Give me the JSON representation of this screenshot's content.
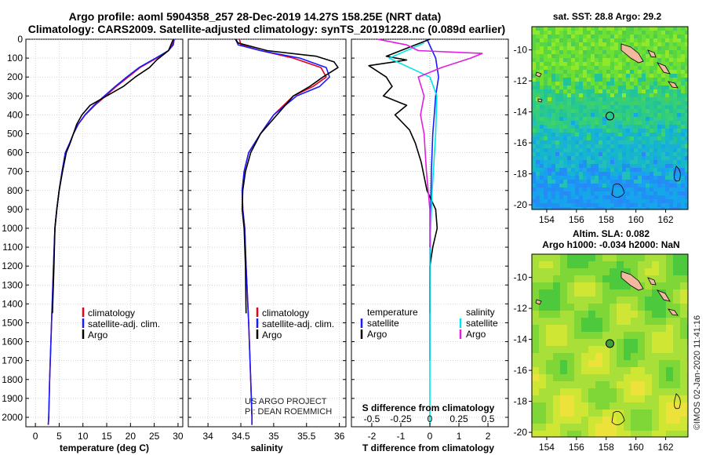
{
  "header": {
    "title_line1": "Argo profile: aoml 5904358_257 28-Dec-2019 14.27S 158.25E (NRT data)",
    "title_line2": "Climatology: CARS2009. Satellite-adjusted climatology: synTS_20191228.nc (0.089d earlier)"
  },
  "colors": {
    "climatology": "#e8001c",
    "satellite": "#1a1aff",
    "argo": "#000000",
    "sal_sat": "#00e5e5",
    "sal_argo": "#e01ee0"
  },
  "depth_axis": {
    "ticks": [
      0,
      100,
      200,
      300,
      400,
      500,
      600,
      700,
      800,
      900,
      1000,
      1100,
      1200,
      1300,
      1400,
      1500,
      1600,
      1700,
      1800,
      1900,
      2000
    ],
    "ylim": [
      0,
      2050
    ]
  },
  "chart_data": [
    {
      "type": "line",
      "name": "temperature",
      "xlabel": "temperature (deg C)",
      "xlim": [
        -2,
        31
      ],
      "xticks": [
        0,
        5,
        10,
        15,
        20,
        25,
        30
      ],
      "legend": [
        "climatology",
        "satellite-adj. clim.",
        "Argo"
      ],
      "series": [
        {
          "name": "climatology",
          "color": "#e8001c",
          "points": [
            [
              29.0,
              0
            ],
            [
              28.8,
              30
            ],
            [
              28.0,
              60
            ],
            [
              25.5,
              100
            ],
            [
              22.0,
              150
            ],
            [
              19.5,
              200
            ],
            [
              17.0,
              250
            ],
            [
              14.8,
              300
            ],
            [
              12.5,
              350
            ],
            [
              10.5,
              400
            ],
            [
              9.0,
              450
            ],
            [
              8.0,
              500
            ],
            [
              7.2,
              550
            ],
            [
              6.3,
              600
            ],
            [
              5.6,
              700
            ],
            [
              5.0,
              800
            ],
            [
              4.5,
              900
            ],
            [
              4.1,
              1000
            ],
            [
              3.8,
              1200
            ],
            [
              3.4,
              1500
            ],
            [
              3.0,
              1800
            ],
            [
              2.8,
              2000
            ],
            [
              2.7,
              2040
            ]
          ]
        },
        {
          "name": "satellite-adj. clim.",
          "color": "#1a1aff",
          "points": [
            [
              29.2,
              0
            ],
            [
              29.0,
              30
            ],
            [
              28.0,
              60
            ],
            [
              25.3,
              100
            ],
            [
              21.8,
              150
            ],
            [
              19.2,
              200
            ],
            [
              16.8,
              250
            ],
            [
              14.5,
              300
            ],
            [
              12.3,
              350
            ],
            [
              10.4,
              400
            ],
            [
              9.0,
              450
            ],
            [
              8.0,
              500
            ],
            [
              7.2,
              550
            ],
            [
              6.3,
              600
            ],
            [
              5.6,
              700
            ],
            [
              5.0,
              800
            ],
            [
              4.5,
              900
            ],
            [
              4.1,
              1000
            ],
            [
              3.8,
              1200
            ],
            [
              3.4,
              1500
            ],
            [
              3.0,
              1800
            ],
            [
              2.8,
              2000
            ],
            [
              2.7,
              2040
            ]
          ]
        },
        {
          "name": "Argo",
          "color": "#000000",
          "points": [
            [
              29.0,
              0
            ],
            [
              28.0,
              60
            ],
            [
              25.5,
              110
            ],
            [
              24.0,
              150
            ],
            [
              21.0,
              200
            ],
            [
              18.5,
              250
            ],
            [
              15.0,
              300
            ],
            [
              11.5,
              350
            ],
            [
              9.8,
              400
            ],
            [
              8.7,
              450
            ],
            [
              8.0,
              500
            ],
            [
              7.3,
              550
            ],
            [
              6.5,
              600
            ],
            [
              5.7,
              700
            ],
            [
              5.0,
              800
            ],
            [
              4.5,
              900
            ],
            [
              4.1,
              1000
            ],
            [
              3.9,
              1200
            ],
            [
              3.6,
              1450
            ]
          ]
        }
      ]
    },
    {
      "type": "line",
      "name": "salinity",
      "xlabel": "salinity",
      "xlim": [
        33.7,
        36.1
      ],
      "xticks": [
        34,
        34.5,
        35,
        35.5,
        36
      ],
      "xtick_labels": [
        "34",
        "34.5",
        "35",
        "35.5",
        "36"
      ],
      "legend": [
        "climatology",
        "satellite-adj. clim.",
        "Argo"
      ],
      "credit": [
        "US ARGO PROJECT",
        "PI: DEAN ROEMMICH"
      ],
      "series": [
        {
          "name": "climatology",
          "color": "#e8001c",
          "points": [
            [
              34.48,
              0
            ],
            [
              34.5,
              30
            ],
            [
              34.8,
              60
            ],
            [
              35.3,
              100
            ],
            [
              35.72,
              150
            ],
            [
              35.8,
              200
            ],
            [
              35.6,
              250
            ],
            [
              35.3,
              300
            ],
            [
              35.0,
              400
            ],
            [
              34.8,
              500
            ],
            [
              34.62,
              600
            ],
            [
              34.55,
              700
            ],
            [
              34.52,
              800
            ],
            [
              34.53,
              900
            ],
            [
              34.56,
              1000
            ],
            [
              34.58,
              1200
            ],
            [
              34.62,
              1500
            ],
            [
              34.65,
              1800
            ],
            [
              34.67,
              2000
            ],
            [
              34.67,
              2040
            ]
          ]
        },
        {
          "name": "satellite-adj. clim.",
          "color": "#1a1aff",
          "points": [
            [
              34.42,
              0
            ],
            [
              34.46,
              30
            ],
            [
              34.8,
              60
            ],
            [
              35.4,
              100
            ],
            [
              35.8,
              150
            ],
            [
              35.85,
              200
            ],
            [
              35.7,
              250
            ],
            [
              35.35,
              300
            ],
            [
              35.0,
              400
            ],
            [
              34.8,
              500
            ],
            [
              34.62,
              600
            ],
            [
              34.55,
              700
            ],
            [
              34.52,
              800
            ],
            [
              34.53,
              900
            ],
            [
              34.56,
              1000
            ],
            [
              34.58,
              1200
            ],
            [
              34.62,
              1500
            ],
            [
              34.65,
              1800
            ],
            [
              34.67,
              2000
            ],
            [
              34.67,
              2040
            ]
          ]
        },
        {
          "name": "Argo",
          "color": "#000000",
          "points": [
            [
              34.42,
              0
            ],
            [
              34.46,
              20
            ],
            [
              34.9,
              60
            ],
            [
              35.65,
              90
            ],
            [
              35.92,
              120
            ],
            [
              35.98,
              150
            ],
            [
              35.75,
              200
            ],
            [
              35.55,
              250
            ],
            [
              35.3,
              300
            ],
            [
              35.05,
              400
            ],
            [
              34.8,
              500
            ],
            [
              34.65,
              600
            ],
            [
              34.57,
              700
            ],
            [
              34.53,
              800
            ],
            [
              34.52,
              900
            ],
            [
              34.55,
              1000
            ],
            [
              34.57,
              1200
            ],
            [
              34.58,
              1450
            ]
          ]
        }
      ]
    },
    {
      "type": "line",
      "name": "difference",
      "xlabel": "T difference from climatology",
      "xlim": [
        -2.7,
        2.7
      ],
      "xticks": [
        -2,
        -1,
        0,
        1,
        2
      ],
      "top_axis_label": "S difference from climatology",
      "top_ticks": [
        -0.5,
        -0.25,
        0,
        0.25,
        0.5
      ],
      "top_tick_labels": [
        "-0.5",
        "-0.25",
        "0",
        "0.25",
        "0.5"
      ],
      "legend_temperature": {
        "title": "temperature",
        "items": [
          "satellite",
          "Argo"
        ]
      },
      "legend_salinity": {
        "title": "salinity",
        "items": [
          "satellite",
          "Argo"
        ]
      },
      "series": [
        {
          "name": "T satellite",
          "color": "#1a1aff",
          "points": [
            [
              -0.1,
              0
            ],
            [
              0.2,
              100
            ],
            [
              0.3,
              200
            ],
            [
              0.2,
              300
            ],
            [
              0.15,
              400
            ],
            [
              0.1,
              500
            ],
            [
              0.05,
              700
            ],
            [
              0.02,
              1000
            ],
            [
              0,
              1300
            ],
            [
              0,
              1700
            ]
          ]
        },
        {
          "name": "T Argo",
          "color": "#000000",
          "points": [
            [
              0,
              0
            ],
            [
              -1.5,
              90
            ],
            [
              -0.8,
              110
            ],
            [
              -2.1,
              140
            ],
            [
              -1.5,
              200
            ],
            [
              -1.3,
              250
            ],
            [
              -1.6,
              300
            ],
            [
              -0.8,
              350
            ],
            [
              -1.2,
              400
            ],
            [
              -0.7,
              480
            ],
            [
              -0.5,
              550
            ],
            [
              -0.3,
              650
            ],
            [
              -0.1,
              800
            ],
            [
              0.2,
              900
            ],
            [
              0.25,
              1000
            ],
            [
              0.1,
              1100
            ],
            [
              0,
              1200
            ],
            [
              0,
              1450
            ]
          ]
        },
        {
          "name": "S satellite",
          "color": "#00e5e5",
          "points": [
            [
              -0.05,
              20
            ],
            [
              -0.35,
              100
            ],
            [
              0,
              200
            ],
            [
              0.06,
              300
            ],
            [
              0.05,
              500
            ],
            [
              0.02,
              800
            ],
            [
              0,
              1100
            ],
            [
              0,
              1500
            ],
            [
              0,
              2040
            ]
          ]
        },
        {
          "name": "S Argo",
          "color": "#e01ee0",
          "points": [
            [
              -0.45,
              0
            ],
            [
              -0.2,
              30
            ],
            [
              -0.1,
              60
            ],
            [
              0.45,
              75
            ],
            [
              0.35,
              100
            ],
            [
              0.1,
              150
            ],
            [
              -0.1,
              200
            ],
            [
              -0.05,
              300
            ],
            [
              -0.08,
              400
            ],
            [
              -0.05,
              500
            ],
            [
              -0.03,
              700
            ],
            [
              0,
              900
            ],
            [
              0,
              1100
            ]
          ]
        }
      ]
    },
    {
      "type": "heatmap",
      "name": "sst_map",
      "title": "sat. SST: 28.8 Argo: 29.2",
      "xticks": [
        154,
        156,
        158,
        160,
        162
      ],
      "yticks": [
        -10,
        -12,
        -14,
        -16,
        -18,
        -20
      ],
      "xlim": [
        153,
        163.5
      ],
      "ylim": [
        -20.3,
        -8.5
      ],
      "argo_marker": {
        "lon": 158.25,
        "lat": -14.27
      }
    },
    {
      "type": "heatmap",
      "name": "sla_map",
      "title_line1": "Altim. SLA: 0.082",
      "title_line2": "Argo h1000: -0.034 h2000: NaN",
      "xticks": [
        154,
        156,
        158,
        160,
        162
      ],
      "yticks": [
        -10,
        -12,
        -14,
        -16,
        -18,
        -20
      ],
      "xlim": [
        153,
        163.5
      ],
      "ylim": [
        -20.3,
        -8.5
      ],
      "argo_marker": {
        "lon": 158.25,
        "lat": -14.27
      },
      "credit": "©IMOS 02-Jan-2020 11:41:16"
    }
  ]
}
